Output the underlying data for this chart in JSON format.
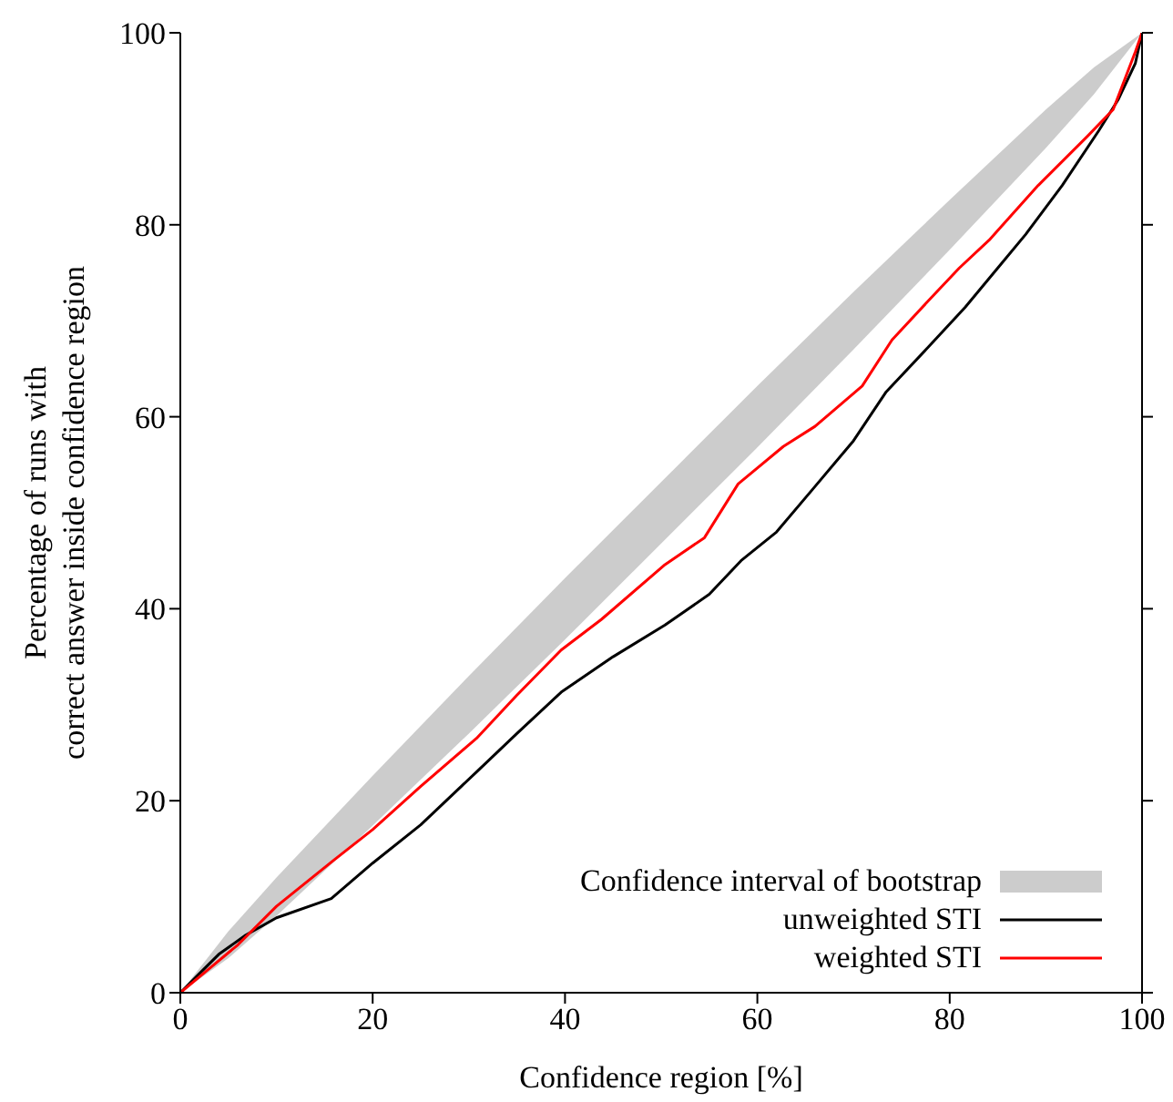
{
  "chart_data": {
    "type": "line",
    "xlabel": "Confidence region [%]",
    "ylabel": "Percentage of runs with\ncorrect answer inside confidence region",
    "xlim": [
      0,
      100
    ],
    "ylim": [
      0,
      100
    ],
    "xticks": [
      0,
      20,
      40,
      60,
      80,
      100
    ],
    "yticks": [
      0,
      20,
      40,
      60,
      80,
      100
    ],
    "grid": false,
    "legend": "bottom right",
    "marker": "none",
    "line_style": "solid",
    "series": [
      {
        "name": "Confidence interval of bootstrap",
        "type": "area",
        "color": "#cccccc",
        "x": [
          0,
          5,
          10,
          20,
          30,
          40,
          50,
          60,
          70,
          80,
          90,
          95,
          100
        ],
        "values": [
          null,
          null,
          null,
          null,
          null,
          null,
          null,
          null,
          null,
          null,
          null,
          null,
          null
        ],
        "lower": [
          0,
          3.6,
          8.0,
          17.4,
          27.0,
          36.8,
          46.8,
          56.8,
          67.0,
          77.4,
          88.0,
          93.6,
          100
        ],
        "upper": [
          0,
          6.4,
          12.0,
          22.6,
          33.0,
          43.2,
          53.2,
          63.2,
          73.0,
          82.6,
          92.0,
          96.4,
          100
        ]
      },
      {
        "name": "unweighted STI",
        "color": "#000000",
        "x": [
          0,
          2,
          4,
          6.8,
          10,
          15.7,
          20,
          25,
          30.8,
          35,
          39.6,
          45,
          50.4,
          55,
          58.3,
          62,
          65.8,
          70,
          73.4,
          78,
          81.6,
          85,
          87.9,
          91.7,
          95.5,
          97.5,
          99.3,
          100
        ],
        "values": [
          0,
          2,
          4,
          6,
          7.8,
          9.8,
          13.5,
          17.5,
          23,
          27,
          31.3,
          35,
          38.3,
          41.5,
          45,
          48,
          52.5,
          57.5,
          62.6,
          67.5,
          71.4,
          75.5,
          79,
          84.1,
          89.8,
          93,
          96.8,
          100
        ]
      },
      {
        "name": "weighted STI",
        "color": "#ff0000",
        "x": [
          0,
          3,
          6,
          10,
          15.7,
          20,
          25,
          30.8,
          35,
          39.6,
          43.8,
          50.4,
          54.5,
          58,
          62.7,
          66,
          70.9,
          74,
          77.8,
          81,
          84.1,
          89.2,
          94.3,
          97,
          99.3,
          100
        ],
        "values": [
          0,
          2.5,
          5,
          9,
          13.6,
          17,
          21.5,
          26.5,
          31,
          35.7,
          38.9,
          44.6,
          47.4,
          53,
          56.9,
          59,
          63.2,
          68,
          72.1,
          75.5,
          78.4,
          84.1,
          89.2,
          92,
          98,
          100
        ]
      }
    ]
  }
}
